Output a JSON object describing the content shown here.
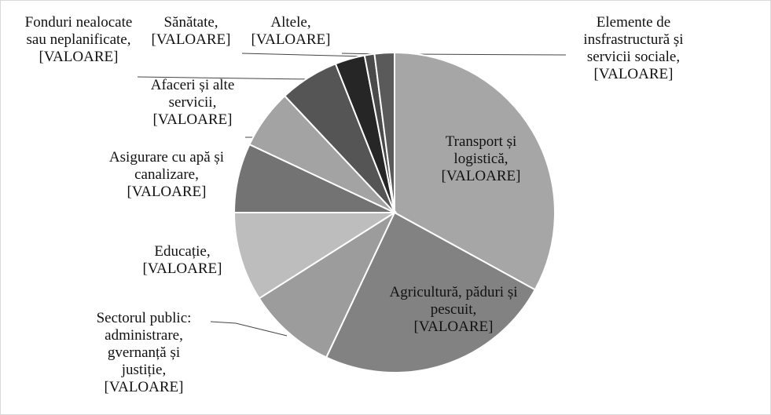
{
  "chart_data": {
    "type": "pie",
    "categories": [
      "Transport și logistică,",
      "Agricultură, păduri și pescuit,",
      "Sectorul public: administrare, gvernanță și justiție,",
      "Educație,",
      "Asigurare cu apă și canalizare,",
      "Afaceri și alte servicii,",
      "Fonduri nealocate sau neplanificate,",
      "Sănătate,",
      "Altele,",
      "Elemente de insfrastructură și servicii sociale,"
    ],
    "values": [
      33,
      24,
      9,
      9,
      7,
      6,
      6,
      3,
      1,
      2
    ],
    "value_labels": [
      "[VALOARE]",
      "[VALOARE]",
      "[VALOARE]",
      "[VALOARE]",
      "[VALOARE]",
      "[VALOARE]",
      "[VALOARE]",
      "[VALOARE]",
      "[VALOARE]",
      "[VALOARE]"
    ],
    "colors": [
      "#a6a6a6",
      "#828282",
      "#9c9c9c",
      "#bdbdbd",
      "#737373",
      "#a3a3a3",
      "#555555",
      "#262626",
      "#4a4a4a",
      "#5a5a5a"
    ]
  }
}
